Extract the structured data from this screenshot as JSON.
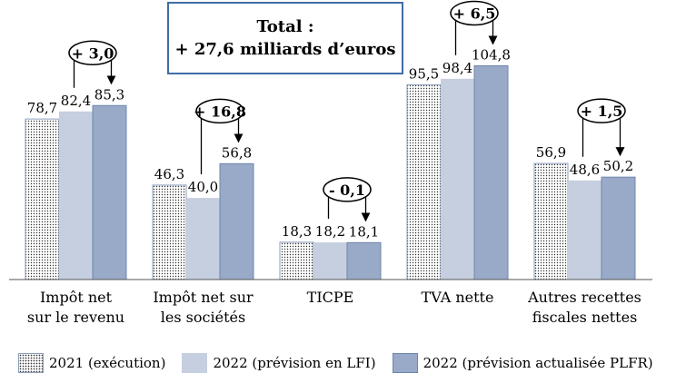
{
  "total": {
    "line1": "Total :",
    "line2": "+ 27,6 milliards d’euros"
  },
  "chart_data": {
    "type": "bar",
    "categories": [
      [
        "Impôt net",
        "sur le revenu"
      ],
      [
        "Impôt net sur",
        "les sociétés"
      ],
      [
        "TICPE"
      ],
      [
        "TVA nette"
      ],
      [
        "Autres recettes",
        "fiscales nettes"
      ]
    ],
    "series": [
      {
        "name": "2021 (exécution)",
        "values": [
          78.7,
          46.3,
          18.3,
          95.5,
          56.9
        ],
        "labels": [
          "78,7",
          "46,3",
          "18,3",
          "95,5",
          "56,9"
        ]
      },
      {
        "name": "2022 (prévision en LFI)",
        "values": [
          82.4,
          40.0,
          18.2,
          98.4,
          48.6
        ],
        "labels": [
          "82,4",
          "40,0",
          "18,2",
          "98,4",
          "48,6"
        ]
      },
      {
        "name": "2022 (prévision actualisée PLFR)",
        "values": [
          85.3,
          56.8,
          18.1,
          104.8,
          50.2
        ],
        "labels": [
          "85,3",
          "56,8",
          "18,1",
          "104,8",
          "50,2"
        ]
      }
    ],
    "annotations": [
      "+ 3,0",
      "+ 16,8",
      "- 0,1",
      "+ 6,5",
      "+ 1,5"
    ],
    "ylim": [
      0,
      105
    ],
    "grid": false,
    "legend": "bottom",
    "colors": {
      "s2021_fill": "#ffffff",
      "s2021_dots": "#333333",
      "s2021_border": "#8a9fbd",
      "lfi": "#c5cfdf",
      "plfr": "#99a9c8",
      "plfr_border": "#6f86ad",
      "axis": "#555555",
      "box_border": "#3f6ca6"
    }
  }
}
